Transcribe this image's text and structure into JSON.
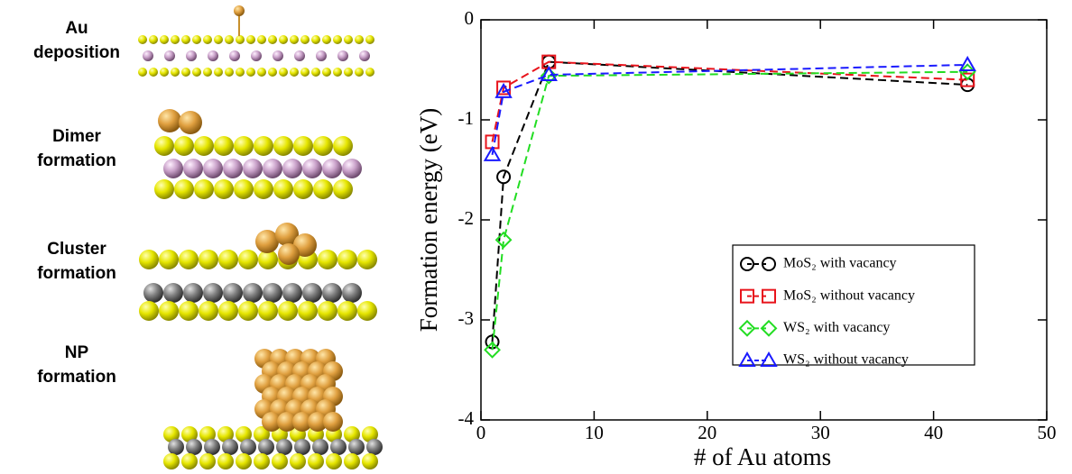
{
  "structures": [
    {
      "label": [
        "Au",
        "deposition"
      ]
    },
    {
      "label": [
        "Dimer",
        "formation"
      ]
    },
    {
      "label": [
        "Cluster",
        "formation"
      ]
    },
    {
      "label": [
        "NP",
        "formation"
      ]
    }
  ],
  "chart_data": {
    "type": "line",
    "xlabel": "# of Au atoms",
    "ylabel": "Formation energy (eV)",
    "xlim": [
      0,
      50
    ],
    "xticks": [
      0,
      10,
      20,
      30,
      40,
      50
    ],
    "ylim": [
      -4,
      0
    ],
    "yticks": [
      -4,
      -3,
      -2,
      -1,
      0
    ],
    "legend": "center right",
    "linestyle": "dashed",
    "series": [
      {
        "name": "MoS₂ with vacancy",
        "color": "#000000",
        "marker": "circle",
        "x": [
          1,
          2,
          6,
          43
        ],
        "values": [
          -3.22,
          -1.57,
          -0.42,
          -0.65
        ]
      },
      {
        "name": "MoS₂ without vacancy",
        "color": "#e8141c",
        "marker": "square",
        "x": [
          1,
          2,
          6,
          43
        ],
        "values": [
          -1.22,
          -0.68,
          -0.42,
          -0.6
        ]
      },
      {
        "name": "WS₂ with vacancy",
        "color": "#22dd22",
        "marker": "diamond",
        "x": [
          1,
          2,
          6,
          43
        ],
        "values": [
          -3.3,
          -2.2,
          -0.56,
          -0.52
        ]
      },
      {
        "name": "WS₂ without vacancy",
        "color": "#1a1aff",
        "marker": "triangle",
        "x": [
          1,
          2,
          6,
          43
        ],
        "values": [
          -1.35,
          -0.72,
          -0.55,
          -0.45
        ]
      }
    ]
  }
}
